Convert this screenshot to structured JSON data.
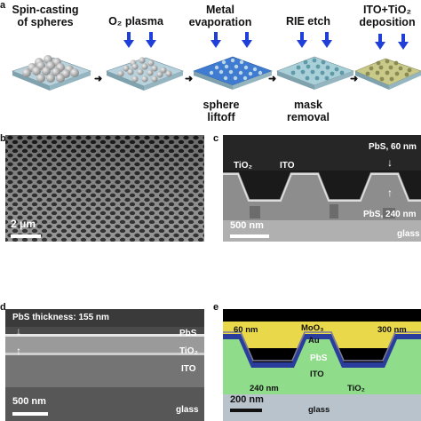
{
  "panel_a": {
    "letter": "a",
    "steps": [
      "Spin-casting of spheres",
      "O₂ plasma",
      "Metal evaporation",
      "RIE etch",
      "ITO+TiO₂ deposition"
    ],
    "sub_steps": [
      "sphere liftoff",
      "mask removal"
    ]
  },
  "panel_b": {
    "letter": "b",
    "scale_bar": "2 μm"
  },
  "panel_c": {
    "letter": "c",
    "labels": {
      "pbs_60": "PbS, 60 nm",
      "tio2": "TiO₂",
      "ito": "ITO",
      "pbs_240": "PbS, 240 nm",
      "glass": "glass"
    },
    "scale_bar": "500 nm"
  },
  "panel_d": {
    "letter": "d",
    "labels": {
      "thickness": "PbS thickness: 155 nm",
      "pbs": "PbS",
      "tio2": "TiO₂",
      "ito": "ITO",
      "glass": "glass"
    },
    "scale_bar": "500 nm"
  },
  "panel_e": {
    "letter": "e",
    "labels": {
      "nm60": "60 nm",
      "moo3": "MoO₃",
      "au": "Au",
      "nm300": "300 nm",
      "pbs": "PbS",
      "nm240": "240 nm",
      "ito": "ITO",
      "tio2": "TiO₂",
      "glass": "glass"
    },
    "scale_bar": "200 nm"
  },
  "colors": {
    "arrow_blue": "#1f3fd8",
    "gold": "#e8d84a",
    "pbs_blue": "#2a3c9c",
    "ito_green": "#8fdc8a",
    "glass_gray": "#b9c3cc",
    "sem_dark": "#2a2a2a"
  }
}
